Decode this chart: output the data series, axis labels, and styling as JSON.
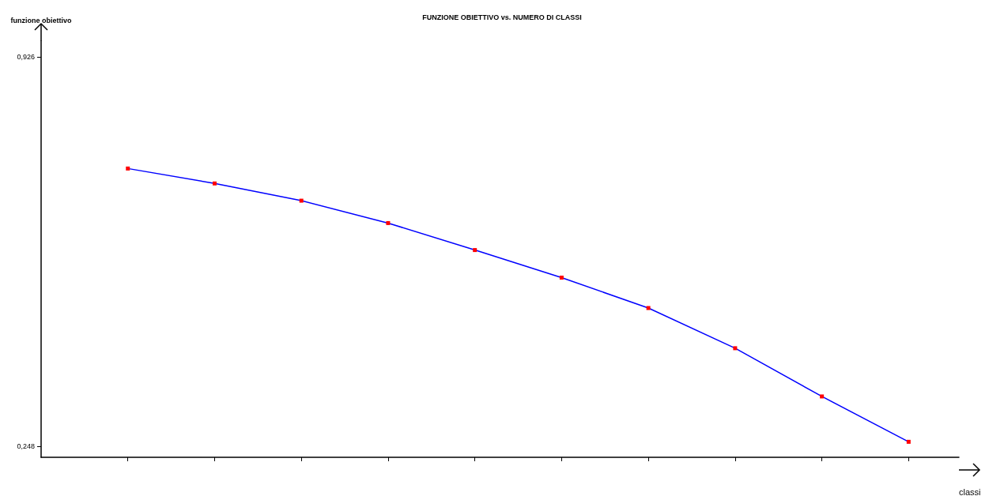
{
  "chart_data": {
    "type": "line",
    "title": "FUNZIONE OBIETTIVO vs. NUMERO DI CLASSI",
    "xlabel": "classi",
    "ylabel": "funzione obiettivo",
    "categories": [
      null,
      null,
      null,
      null,
      null,
      null,
      null,
      null,
      null,
      null
    ],
    "series": [
      {
        "color": "#0000ff",
        "colors": [
          "#ff0000",
          "#ff0000",
          "#ff0000",
          "#ff0000",
          "#ff0000",
          "#ff0000",
          "#ff0000",
          "#ff0000",
          "#ff0000",
          "#ff0000"
        ],
        "values": [
          0.732,
          0.706,
          0.676,
          0.637,
          0.59,
          0.542,
          0.489,
          0.419,
          0.335,
          0.256
        ]
      }
    ],
    "ylim": [
      0.229,
      0.954
    ],
    "yticks": [
      {
        "value": 0.926,
        "label": "0,926"
      },
      {
        "value": 0.248,
        "label": "0,248"
      }
    ],
    "grid": false,
    "marker": "square",
    "line_style": "solid"
  }
}
